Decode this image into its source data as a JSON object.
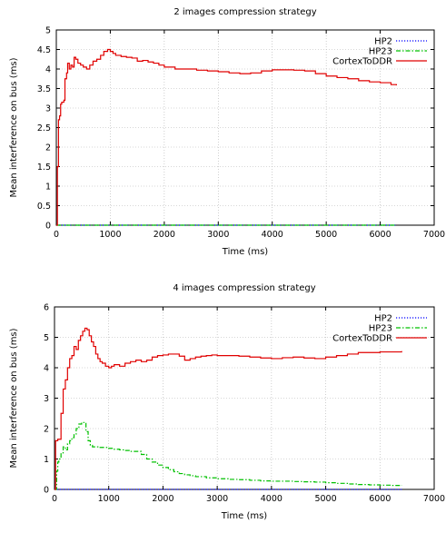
{
  "chart_data": [
    {
      "type": "line",
      "title": "2 images compression strategy",
      "xlabel": "Time (ms)",
      "ylabel": "Mean interference on bus (ms)",
      "xlim": [
        0,
        7000
      ],
      "ylim": [
        0,
        5
      ],
      "xticks": [
        0,
        1000,
        2000,
        3000,
        4000,
        5000,
        6000,
        7000
      ],
      "yticks": [
        0,
        0.5,
        1,
        1.5,
        2,
        2.5,
        3,
        3.5,
        4,
        4.5,
        5
      ],
      "grid": true,
      "legend_position": "top-right",
      "series": [
        {
          "name": "HP2",
          "color": "#0000ff",
          "style": "dotted",
          "points": [
            [
              0,
              0
            ],
            [
              6300,
              0
            ]
          ]
        },
        {
          "name": "HP23",
          "color": "#00c000",
          "style": "dashdot",
          "points": [
            [
              0,
              0
            ],
            [
              6300,
              0
            ]
          ]
        },
        {
          "name": "CortexToDDR",
          "color": "#e00000",
          "style": "solid",
          "points": [
            [
              0,
              0
            ],
            [
              20,
              1.5
            ],
            [
              40,
              2.7
            ],
            [
              60,
              2.8
            ],
            [
              80,
              3.1
            ],
            [
              100,
              3.15
            ],
            [
              140,
              3.2
            ],
            [
              160,
              3.75
            ],
            [
              190,
              3.9
            ],
            [
              210,
              4.15
            ],
            [
              240,
              4.0
            ],
            [
              270,
              4.1
            ],
            [
              300,
              4.05
            ],
            [
              330,
              4.3
            ],
            [
              360,
              4.25
            ],
            [
              400,
              4.15
            ],
            [
              450,
              4.1
            ],
            [
              500,
              4.05
            ],
            [
              560,
              4.0
            ],
            [
              620,
              4.1
            ],
            [
              680,
              4.2
            ],
            [
              750,
              4.25
            ],
            [
              820,
              4.35
            ],
            [
              880,
              4.45
            ],
            [
              950,
              4.5
            ],
            [
              1000,
              4.45
            ],
            [
              1050,
              4.4
            ],
            [
              1100,
              4.35
            ],
            [
              1200,
              4.32
            ],
            [
              1300,
              4.3
            ],
            [
              1400,
              4.28
            ],
            [
              1500,
              4.2
            ],
            [
              1600,
              4.22
            ],
            [
              1700,
              4.18
            ],
            [
              1800,
              4.15
            ],
            [
              1900,
              4.1
            ],
            [
              2000,
              4.05
            ],
            [
              2200,
              4.0
            ],
            [
              2400,
              4.0
            ],
            [
              2600,
              3.97
            ],
            [
              2800,
              3.95
            ],
            [
              3000,
              3.93
            ],
            [
              3200,
              3.9
            ],
            [
              3400,
              3.88
            ],
            [
              3600,
              3.9
            ],
            [
              3800,
              3.95
            ],
            [
              4000,
              3.98
            ],
            [
              4200,
              3.98
            ],
            [
              4400,
              3.97
            ],
            [
              4600,
              3.95
            ],
            [
              4800,
              3.88
            ],
            [
              5000,
              3.82
            ],
            [
              5200,
              3.78
            ],
            [
              5400,
              3.75
            ],
            [
              5600,
              3.7
            ],
            [
              5800,
              3.67
            ],
            [
              6000,
              3.65
            ],
            [
              6200,
              3.6
            ],
            [
              6300,
              3.58
            ]
          ]
        }
      ]
    },
    {
      "type": "line",
      "title": "4 images compression strategy",
      "xlabel": "Time (ms)",
      "ylabel": "Mean interference on bus (ms)",
      "xlim": [
        0,
        7000
      ],
      "ylim": [
        0,
        6
      ],
      "xticks": [
        0,
        1000,
        2000,
        3000,
        4000,
        5000,
        6000,
        7000
      ],
      "yticks": [
        0,
        1,
        2,
        3,
        4,
        5,
        6
      ],
      "grid": true,
      "legend_position": "top-right",
      "series": [
        {
          "name": "HP2",
          "color": "#0000ff",
          "style": "dotted",
          "points": [
            [
              0,
              0
            ],
            [
              6400,
              0
            ]
          ]
        },
        {
          "name": "HP23",
          "color": "#00c000",
          "style": "dashdot",
          "points": [
            [
              0,
              0
            ],
            [
              40,
              0.6
            ],
            [
              60,
              0.9
            ],
            [
              80,
              1.0
            ],
            [
              120,
              1.2
            ],
            [
              160,
              1.4
            ],
            [
              200,
              1.3
            ],
            [
              240,
              1.5
            ],
            [
              280,
              1.6
            ],
            [
              320,
              1.7
            ],
            [
              360,
              1.8
            ],
            [
              400,
              2.0
            ],
            [
              450,
              2.15
            ],
            [
              500,
              2.2
            ],
            [
              550,
              2.2
            ],
            [
              580,
              1.9
            ],
            [
              620,
              1.6
            ],
            [
              660,
              1.45
            ],
            [
              700,
              1.4
            ],
            [
              800,
              1.38
            ],
            [
              900,
              1.38
            ],
            [
              1000,
              1.35
            ],
            [
              1100,
              1.32
            ],
            [
              1200,
              1.3
            ],
            [
              1300,
              1.28
            ],
            [
              1400,
              1.25
            ],
            [
              1500,
              1.25
            ],
            [
              1600,
              1.15
            ],
            [
              1700,
              1.0
            ],
            [
              1800,
              0.9
            ],
            [
              1900,
              0.8
            ],
            [
              2000,
              0.72
            ],
            [
              2100,
              0.65
            ],
            [
              2200,
              0.58
            ],
            [
              2300,
              0.52
            ],
            [
              2400,
              0.48
            ],
            [
              2500,
              0.45
            ],
            [
              2600,
              0.42
            ],
            [
              2800,
              0.38
            ],
            [
              3000,
              0.35
            ],
            [
              3200,
              0.33
            ],
            [
              3400,
              0.32
            ],
            [
              3600,
              0.3
            ],
            [
              3800,
              0.28
            ],
            [
              4000,
              0.27
            ],
            [
              4200,
              0.27
            ],
            [
              4400,
              0.26
            ],
            [
              4600,
              0.25
            ],
            [
              4800,
              0.24
            ],
            [
              5000,
              0.22
            ],
            [
              5200,
              0.2
            ],
            [
              5400,
              0.18
            ],
            [
              5600,
              0.16
            ],
            [
              5800,
              0.15
            ],
            [
              6000,
              0.14
            ],
            [
              6200,
              0.13
            ],
            [
              6400,
              0.12
            ]
          ]
        },
        {
          "name": "CortexToDDR",
          "color": "#e00000",
          "style": "solid",
          "points": [
            [
              0,
              0
            ],
            [
              20,
              1.6
            ],
            [
              60,
              1.65
            ],
            [
              120,
              2.5
            ],
            [
              160,
              3.3
            ],
            [
              200,
              3.6
            ],
            [
              240,
              4.0
            ],
            [
              280,
              4.3
            ],
            [
              320,
              4.4
            ],
            [
              360,
              4.7
            ],
            [
              400,
              4.6
            ],
            [
              440,
              4.9
            ],
            [
              480,
              5.05
            ],
            [
              520,
              5.2
            ],
            [
              560,
              5.3
            ],
            [
              600,
              5.25
            ],
            [
              640,
              5.05
            ],
            [
              680,
              4.85
            ],
            [
              720,
              4.7
            ],
            [
              760,
              4.45
            ],
            [
              800,
              4.3
            ],
            [
              840,
              4.2
            ],
            [
              880,
              4.15
            ],
            [
              940,
              4.05
            ],
            [
              1000,
              4.0
            ],
            [
              1050,
              4.05
            ],
            [
              1100,
              4.1
            ],
            [
              1200,
              4.05
            ],
            [
              1300,
              4.15
            ],
            [
              1400,
              4.2
            ],
            [
              1500,
              4.25
            ],
            [
              1600,
              4.2
            ],
            [
              1700,
              4.25
            ],
            [
              1800,
              4.35
            ],
            [
              1900,
              4.4
            ],
            [
              2000,
              4.42
            ],
            [
              2100,
              4.45
            ],
            [
              2200,
              4.45
            ],
            [
              2300,
              4.38
            ],
            [
              2400,
              4.25
            ],
            [
              2500,
              4.3
            ],
            [
              2600,
              4.35
            ],
            [
              2700,
              4.38
            ],
            [
              2800,
              4.4
            ],
            [
              2900,
              4.42
            ],
            [
              3000,
              4.4
            ],
            [
              3200,
              4.4
            ],
            [
              3400,
              4.38
            ],
            [
              3600,
              4.35
            ],
            [
              3800,
              4.32
            ],
            [
              4000,
              4.3
            ],
            [
              4200,
              4.33
            ],
            [
              4400,
              4.35
            ],
            [
              4600,
              4.32
            ],
            [
              4800,
              4.3
            ],
            [
              5000,
              4.35
            ],
            [
              5200,
              4.4
            ],
            [
              5400,
              4.45
            ],
            [
              5600,
              4.5
            ],
            [
              5800,
              4.5
            ],
            [
              6000,
              4.52
            ],
            [
              6200,
              4.52
            ],
            [
              6400,
              4.55
            ]
          ]
        }
      ]
    }
  ]
}
